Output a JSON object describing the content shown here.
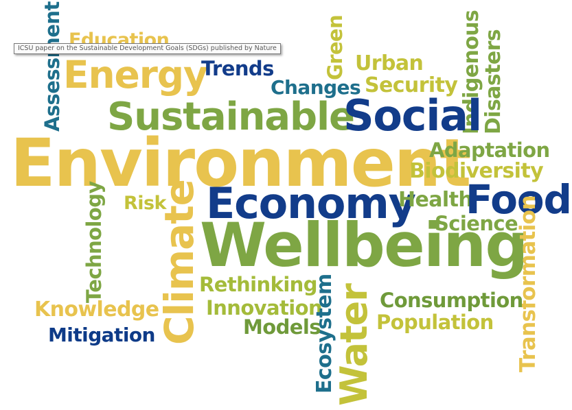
{
  "tooltip": {
    "text": "ICSU paper on the Sustainable Development Goals (SDGs) published by Nature"
  },
  "palette": {
    "yellow": "#e8c34e",
    "olive_yellow": "#c3c23a",
    "light_green": "#a4bb3a",
    "green": "#7ea644",
    "dark_green": "#6f9a3a",
    "teal": "#1e6f8c",
    "navy": "#123c8a",
    "dark_navy": "#0e3b88"
  },
  "words": [
    {
      "id": "assessment",
      "text": "Assessment"
    },
    {
      "id": "education",
      "text": "Education"
    },
    {
      "id": "energy",
      "text": "Energy"
    },
    {
      "id": "trends",
      "text": "Trends"
    },
    {
      "id": "green",
      "text": "Green"
    },
    {
      "id": "urban",
      "text": "Urban"
    },
    {
      "id": "indigenous",
      "text": "Indigenous"
    },
    {
      "id": "disasters",
      "text": "Disasters"
    },
    {
      "id": "changes",
      "text": "Changes"
    },
    {
      "id": "security",
      "text": "Security"
    },
    {
      "id": "sustainable",
      "text": "Sustainable"
    },
    {
      "id": "social",
      "text": "Social"
    },
    {
      "id": "environment",
      "text": "Environment"
    },
    {
      "id": "adaptation",
      "text": "Adaptation"
    },
    {
      "id": "biodiversity",
      "text": "Biodiversity"
    },
    {
      "id": "risk",
      "text": "Risk"
    },
    {
      "id": "technology",
      "text": "Technology"
    },
    {
      "id": "climate",
      "text": "Climate"
    },
    {
      "id": "economy",
      "text": "Economy"
    },
    {
      "id": "health",
      "text": "Health"
    },
    {
      "id": "food",
      "text": "Food"
    },
    {
      "id": "science",
      "text": "Science"
    },
    {
      "id": "wellbeing",
      "text": "Wellbeing"
    },
    {
      "id": "transformation",
      "text": "Transformation"
    },
    {
      "id": "rethinking",
      "text": "Rethinking"
    },
    {
      "id": "knowledge",
      "text": "Knowledge"
    },
    {
      "id": "innovation",
      "text": "Innovation"
    },
    {
      "id": "ecosystem",
      "text": "Ecosystem"
    },
    {
      "id": "water",
      "text": "Water"
    },
    {
      "id": "consumption",
      "text": "Consumption"
    },
    {
      "id": "models",
      "text": "Models"
    },
    {
      "id": "population",
      "text": "Population"
    },
    {
      "id": "mitigation",
      "text": "Mitigation"
    }
  ]
}
